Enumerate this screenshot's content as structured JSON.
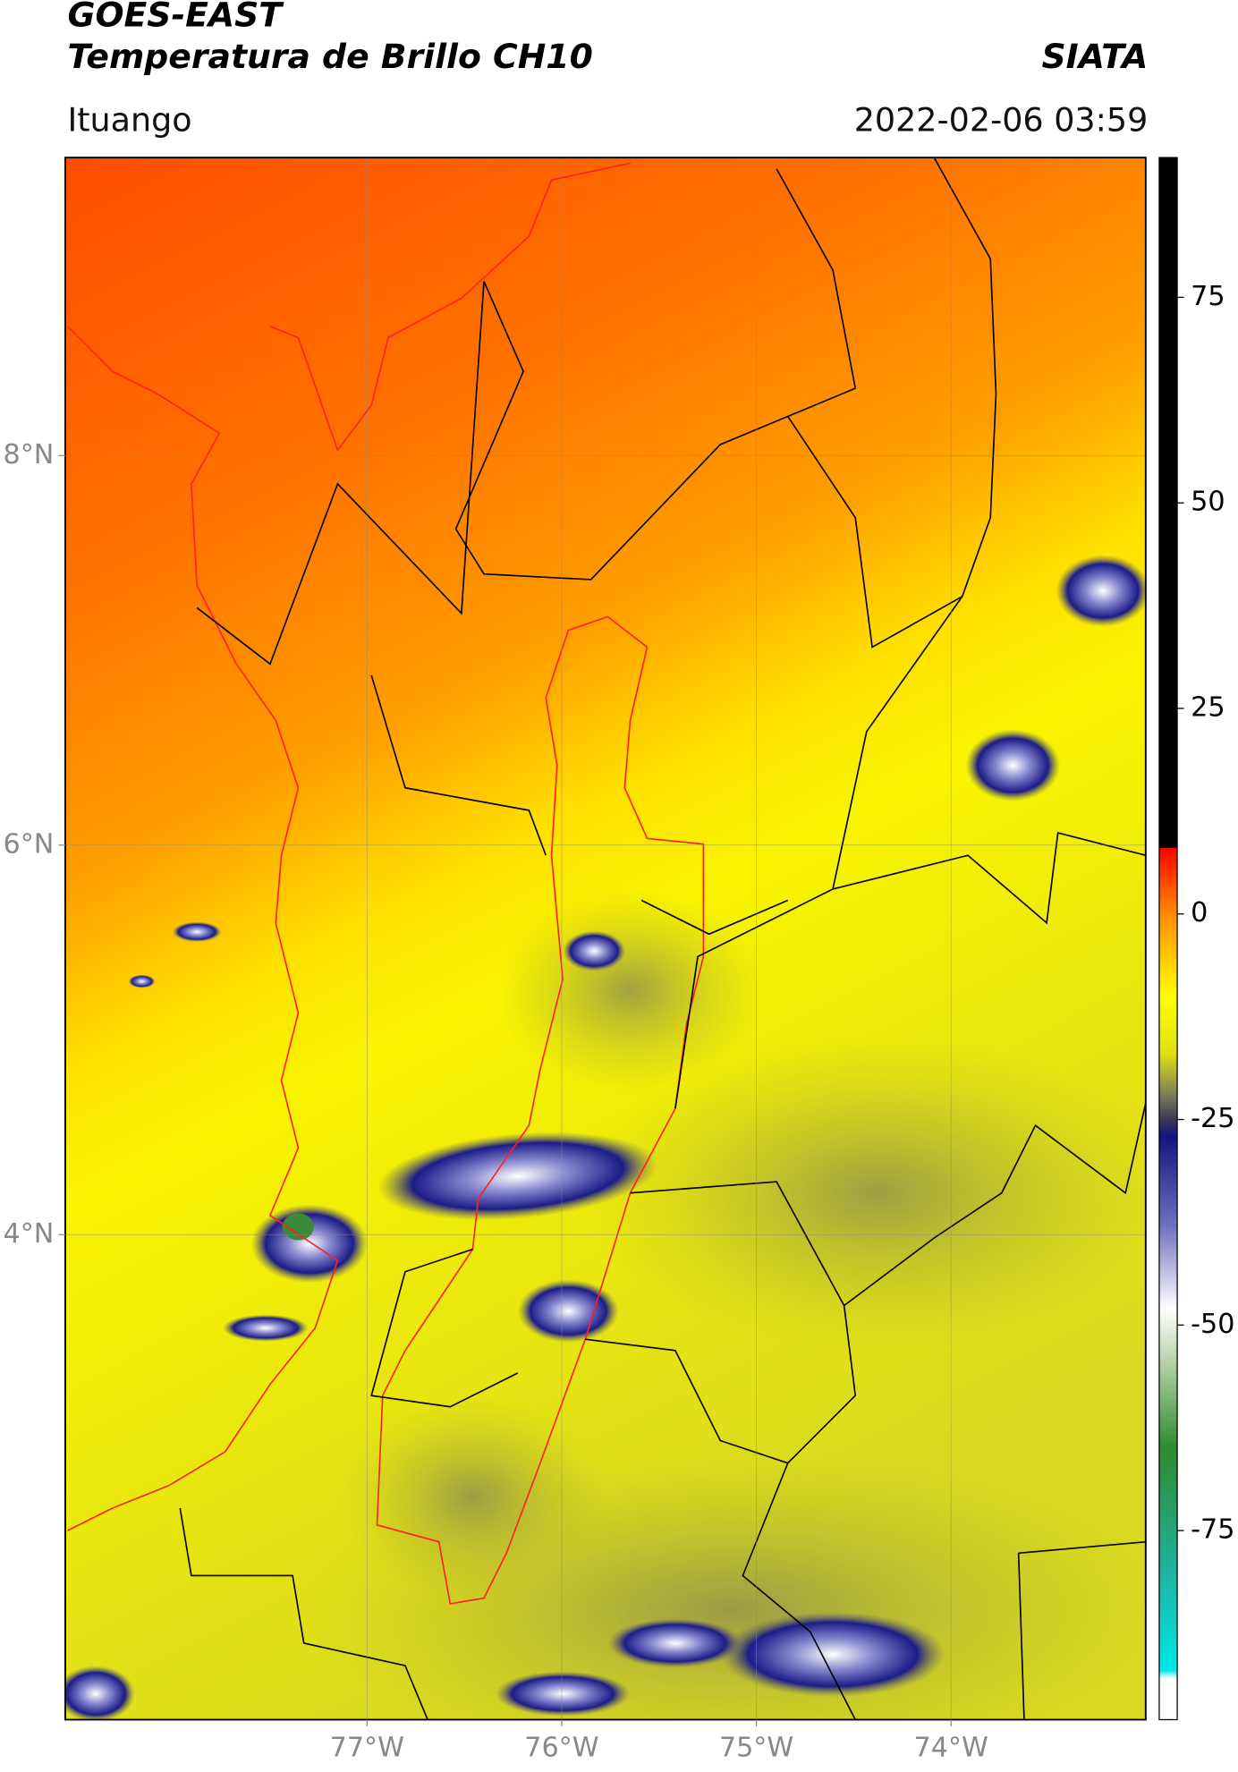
{
  "chart_data": {
    "type": "map",
    "title": "GOES-EAST",
    "subtitle": "Temperatura de Brillo CH10",
    "source": "SIATA",
    "location": "Ituango",
    "datetime": "2022-02-06 03:59",
    "xlim": [
      -78.55,
      -73.0
    ],
    "ylim": [
      1.51,
      9.53
    ],
    "xticks": [
      {
        "value": -77,
        "label": "77°W"
      },
      {
        "value": -76,
        "label": "76°W"
      },
      {
        "value": -75,
        "label": "75°W"
      },
      {
        "value": -74,
        "label": "74°W"
      }
    ],
    "yticks": [
      {
        "value": 8,
        "label": "8°N"
      },
      {
        "value": 6,
        "label": "6°N"
      },
      {
        "value": 4,
        "label": "4°N"
      }
    ],
    "grid": true,
    "colorbar": {
      "lim": [
        -98,
        92
      ],
      "ticks": [
        75,
        50,
        25,
        0,
        -25,
        -50,
        -75
      ],
      "stops": [
        {
          "value": 92,
          "color": "#000000"
        },
        {
          "value": 8,
          "color": "#000000"
        },
        {
          "value": 8,
          "color": "#ff0000"
        },
        {
          "value": 0,
          "color": "#ff8c00"
        },
        {
          "value": -10,
          "color": "#ffff00"
        },
        {
          "value": -17,
          "color": "#e0e010"
        },
        {
          "value": -22,
          "color": "#7c7c5c"
        },
        {
          "value": -25,
          "color": "#3a3a50"
        },
        {
          "value": -27,
          "color": "#141480"
        },
        {
          "value": -38,
          "color": "#7070c0"
        },
        {
          "value": -48,
          "color": "#ffffff"
        },
        {
          "value": -53,
          "color": "#c8dcbc"
        },
        {
          "value": -65,
          "color": "#2e8b2e"
        },
        {
          "value": -80,
          "color": "#20b2a0"
        },
        {
          "value": -92,
          "color": "#00e8e8"
        },
        {
          "value": -93,
          "color": "#ffffff"
        },
        {
          "value": -98,
          "color": "#ffffff"
        }
      ]
    }
  }
}
